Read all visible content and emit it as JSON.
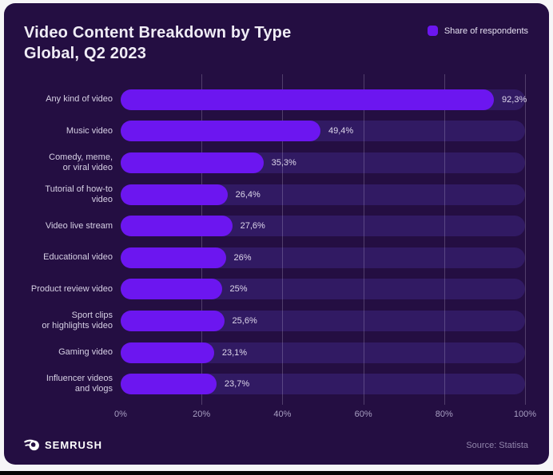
{
  "header": {
    "title": "Video Content Breakdown by Type",
    "subtitle": "Global, Q2 2023",
    "legend_label": "Share of respondents"
  },
  "chart_data": {
    "type": "bar",
    "orientation": "horizontal",
    "title": "Video Content Breakdown by Type",
    "subtitle": "Global, Q2 2023",
    "legend": [
      "Share of respondents"
    ],
    "legend_position": "top-right",
    "unit": "%",
    "categories": [
      "Any kind of video",
      "Music video",
      "Comedy, meme, or viral video",
      "Tutorial of how-to video",
      "Video live stream",
      "Educational video",
      "Product review video",
      "Sport clips or highlights video",
      "Gaming video",
      "Influencer videos and vlogs"
    ],
    "category_display": [
      "Any kind of video",
      "Music video",
      "Comedy, meme,\nor viral video",
      "Tutorial of how-to\nvideo",
      "Video live stream",
      "Educational video",
      "Product review video",
      "Sport clips\nor highlights video",
      "Gaming video",
      "Influencer videos\nand vlogs"
    ],
    "values": [
      92.3,
      49.4,
      35.3,
      26.4,
      27.6,
      26,
      25,
      25.6,
      23.1,
      23.7
    ],
    "value_labels": [
      "92,3%",
      "49,4%",
      "35,3%",
      "26,4%",
      "27,6%",
      "26%",
      "25%",
      "25,6%",
      "23,1%",
      "23,7%"
    ],
    "xlim": [
      0,
      100
    ],
    "x_tick_values": [
      0,
      20,
      40,
      60,
      80,
      100
    ],
    "x_tick_labels": [
      "0%",
      "20%",
      "40%",
      "60%",
      "80%",
      "100%"
    ],
    "grid": "vertical gridlines at 20% steps"
  },
  "footer": {
    "brand": "SEMRUSH",
    "source": "Source: Statista"
  },
  "colors": {
    "page_bg": "#f6f5f7",
    "card_bg": "#240e42",
    "bar": "#6c16f0",
    "bar_track": "#311a63",
    "title_text": "#efecf5",
    "axis_text": "#a89fc2",
    "bottom_border": "#060606"
  }
}
